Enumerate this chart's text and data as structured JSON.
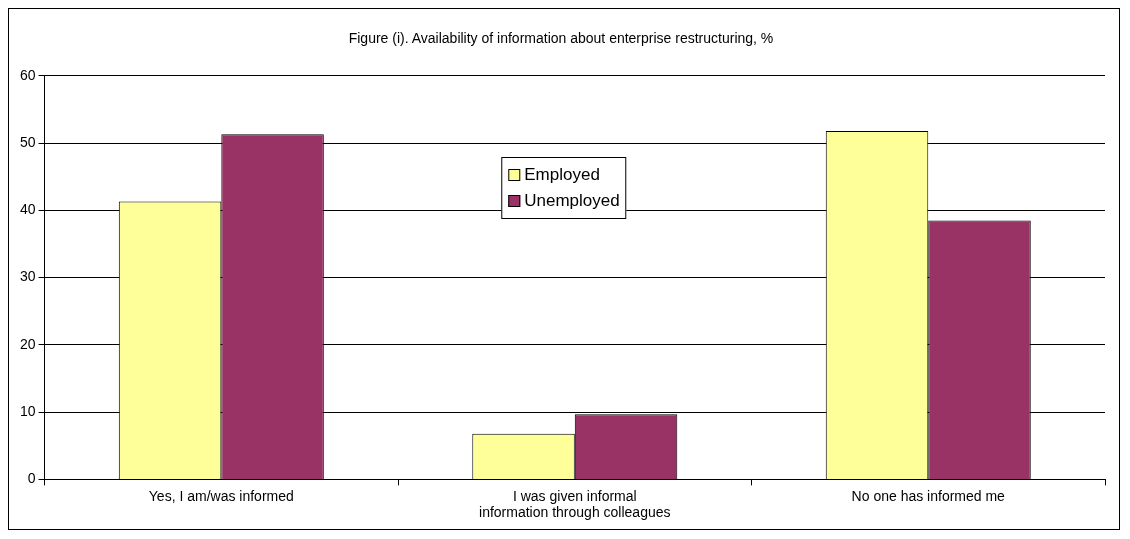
{
  "chart_data": {
    "type": "bar",
    "title": "Figure (i). Availability of information about enterprise restructuring, %",
    "categories": [
      "Yes, I am/was informed",
      "I was given informal information through colleagues",
      "No one has informed me"
    ],
    "series": [
      {
        "name": "Employed",
        "color": "#ffff99",
        "values": [
          41.3,
          6.8,
          51.8
        ]
      },
      {
        "name": "Unemployed",
        "color": "#993366",
        "values": [
          51.3,
          9.7,
          38.5
        ]
      }
    ],
    "ylim": [
      0,
      60
    ],
    "yticks": [
      0,
      10,
      20,
      30,
      40,
      50,
      60
    ],
    "grid": "y",
    "legend": "top"
  }
}
